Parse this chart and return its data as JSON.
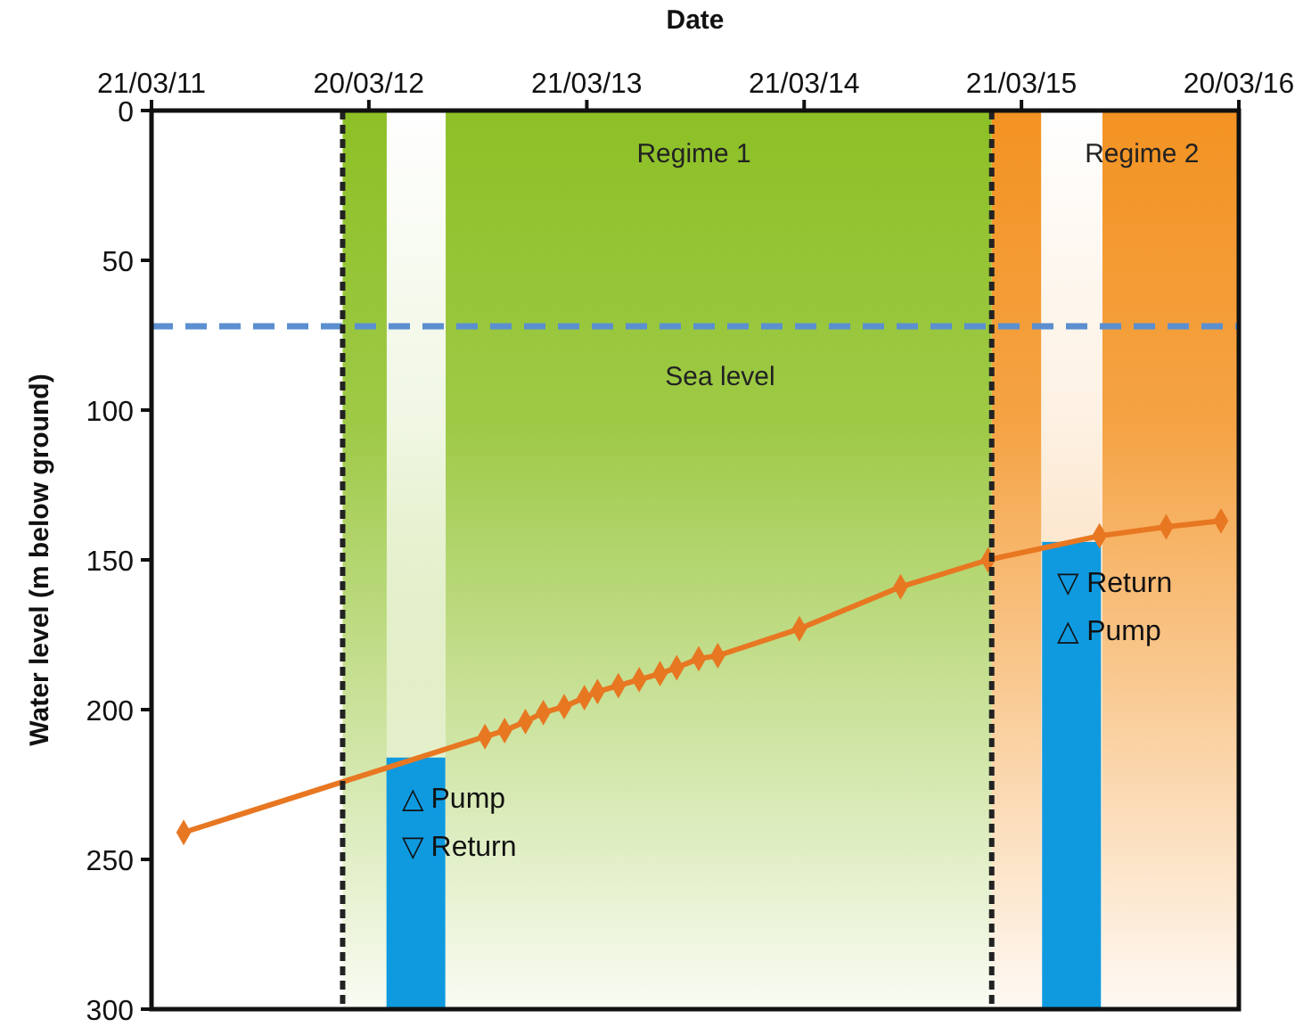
{
  "chart_data": {
    "type": "line",
    "xlabel": "Date",
    "ylabel": "Water level (m below ground)",
    "xlim": [
      "2011-03-21",
      "2016-03-20"
    ],
    "xticks": [
      {
        "value": "2011-03-21",
        "label": "21/03/11"
      },
      {
        "value": "2012-03-20",
        "label": "20/03/12"
      },
      {
        "value": "2013-03-21",
        "label": "21/03/13"
      },
      {
        "value": "2014-03-21",
        "label": "21/03/14"
      },
      {
        "value": "2015-03-21",
        "label": "21/03/15"
      },
      {
        "value": "2016-03-20",
        "label": "20/03/16"
      }
    ],
    "ylim": [
      300,
      0
    ],
    "yticks": [
      0,
      50,
      100,
      150,
      200,
      250,
      300
    ],
    "grid": false,
    "bands": [
      {
        "axis": "x",
        "from": "2012-02-05",
        "to": "2015-01-30",
        "label": "Regime 1",
        "color": "#8dc026"
      },
      {
        "axis": "x",
        "from": "2015-01-30",
        "to": "2016-03-20",
        "label": "Regime 2",
        "color": "#f39323"
      },
      {
        "axis": "x",
        "from": "2012-04-19",
        "to": "2012-07-27",
        "label": null,
        "color": "#ffffff"
      },
      {
        "axis": "x",
        "from": "2015-04-23",
        "to": "2015-08-04",
        "label": null,
        "color": "#ffffff"
      }
    ],
    "ref_lines": [
      {
        "axis": "y",
        "value": 72,
        "label": "Sea level",
        "color": "#5b8fd0",
        "line_style": "dashed"
      },
      {
        "axis": "x",
        "value": "2012-02-05",
        "label": null,
        "color": "#222222",
        "line_style": "dotted"
      },
      {
        "axis": "x",
        "value": "2015-01-30",
        "label": null,
        "color": "#222222",
        "line_style": "dotted"
      }
    ],
    "series": [
      {
        "type": "bar",
        "color": "#0f9ae0",
        "x": [
          "2012-06-07",
          "2015-06-13"
        ],
        "base": [
          216,
          144
        ],
        "values": [
          84,
          156
        ]
      },
      {
        "color": "#e87722",
        "marker": "diamond",
        "line_style": "solid",
        "x": [
          "2011-05-14",
          "2012-10-01",
          "2012-11-03",
          "2012-12-08",
          "2013-01-07",
          "2013-02-11",
          "2013-03-17",
          "2013-04-08",
          "2013-05-13",
          "2013-06-17",
          "2013-07-22",
          "2013-08-19",
          "2013-09-25",
          "2013-10-27",
          "2014-03-13",
          "2014-08-30",
          "2015-01-24",
          "2015-07-30",
          "2015-11-19",
          "2016-02-19"
        ],
        "values": [
          241,
          209,
          207,
          204,
          201,
          199,
          196,
          194,
          192,
          190,
          188,
          186,
          183,
          182,
          173,
          159,
          150,
          142,
          139,
          137
        ]
      }
    ],
    "annotations": [
      "△ Pump",
      "▽ Return",
      "▽ Return",
      "△ Pump"
    ]
  }
}
